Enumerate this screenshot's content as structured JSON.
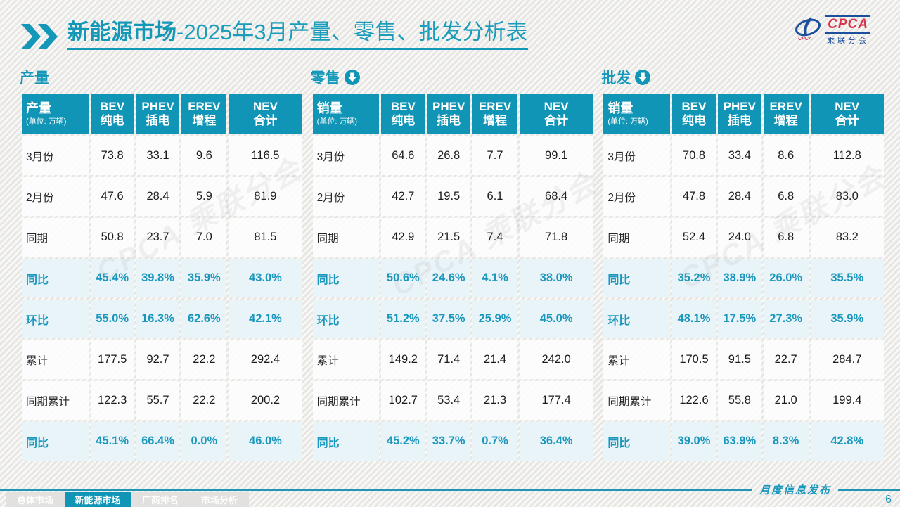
{
  "header": {
    "title_primary": "新能源市场",
    "title_secondary": "-2025年3月产量、零售、批发分析表"
  },
  "logo": {
    "acronym": "CPCA",
    "name": "乘联分会"
  },
  "unit_label": "(单位: 万辆)",
  "watermark_text": "CPCA 乘联分会",
  "columns": [
    {
      "en": "BEV",
      "cn": "纯电"
    },
    {
      "en": "PHEV",
      "cn": "插电"
    },
    {
      "en": "EREV",
      "cn": "增程"
    },
    {
      "en": "NEV",
      "cn": "合计"
    }
  ],
  "tables": [
    {
      "section_label": "产量",
      "first_col": "产量",
      "rows": [
        {
          "label": "3月份",
          "pct": false,
          "values": [
            "73.8",
            "33.1",
            "9.6",
            "116.5"
          ]
        },
        {
          "label": "2月份",
          "pct": false,
          "values": [
            "47.6",
            "28.4",
            "5.9",
            "81.9"
          ]
        },
        {
          "label": "同期",
          "pct": false,
          "values": [
            "50.8",
            "23.7",
            "7.0",
            "81.5"
          ]
        },
        {
          "label": "同比",
          "pct": true,
          "values": [
            "45.4%",
            "39.8%",
            "35.9%",
            "43.0%"
          ]
        },
        {
          "label": "环比",
          "pct": true,
          "values": [
            "55.0%",
            "16.3%",
            "62.6%",
            "42.1%"
          ]
        },
        {
          "label": "累计",
          "pct": false,
          "values": [
            "177.5",
            "92.7",
            "22.2",
            "292.4"
          ]
        },
        {
          "label": "同期累计",
          "pct": false,
          "values": [
            "122.3",
            "55.7",
            "22.2",
            "200.2"
          ]
        },
        {
          "label": "同比",
          "pct": true,
          "values": [
            "45.1%",
            "66.4%",
            "0.0%",
            "46.0%"
          ]
        }
      ]
    },
    {
      "section_label": "零售",
      "first_col": "销量",
      "rows": [
        {
          "label": "3月份",
          "pct": false,
          "values": [
            "64.6",
            "26.8",
            "7.7",
            "99.1"
          ]
        },
        {
          "label": "2月份",
          "pct": false,
          "values": [
            "42.7",
            "19.5",
            "6.1",
            "68.4"
          ]
        },
        {
          "label": "同期",
          "pct": false,
          "values": [
            "42.9",
            "21.5",
            "7.4",
            "71.8"
          ]
        },
        {
          "label": "同比",
          "pct": true,
          "values": [
            "50.6%",
            "24.6%",
            "4.1%",
            "38.0%"
          ]
        },
        {
          "label": "环比",
          "pct": true,
          "values": [
            "51.2%",
            "37.5%",
            "25.9%",
            "45.0%"
          ]
        },
        {
          "label": "累计",
          "pct": false,
          "values": [
            "149.2",
            "71.4",
            "21.4",
            "242.0"
          ]
        },
        {
          "label": "同期累计",
          "pct": false,
          "values": [
            "102.7",
            "53.4",
            "21.3",
            "177.4"
          ]
        },
        {
          "label": "同比",
          "pct": true,
          "values": [
            "45.2%",
            "33.7%",
            "0.7%",
            "36.4%"
          ]
        }
      ]
    },
    {
      "section_label": "批发",
      "first_col": "销量",
      "rows": [
        {
          "label": "3月份",
          "pct": false,
          "values": [
            "70.8",
            "33.4",
            "8.6",
            "112.8"
          ]
        },
        {
          "label": "2月份",
          "pct": false,
          "values": [
            "47.8",
            "28.4",
            "6.8",
            "83.0"
          ]
        },
        {
          "label": "同期",
          "pct": false,
          "values": [
            "52.4",
            "24.0",
            "6.8",
            "83.2"
          ]
        },
        {
          "label": "同比",
          "pct": true,
          "values": [
            "35.2%",
            "38.9%",
            "26.0%",
            "35.5%"
          ]
        },
        {
          "label": "环比",
          "pct": true,
          "values": [
            "48.1%",
            "17.5%",
            "27.3%",
            "35.9%"
          ]
        },
        {
          "label": "累计",
          "pct": false,
          "values": [
            "170.5",
            "91.5",
            "22.7",
            "284.7"
          ]
        },
        {
          "label": "同期累计",
          "pct": false,
          "values": [
            "122.6",
            "55.8",
            "21.0",
            "199.4"
          ]
        },
        {
          "label": "同比",
          "pct": true,
          "values": [
            "39.0%",
            "63.9%",
            "8.3%",
            "42.8%"
          ]
        }
      ]
    }
  ],
  "footer": {
    "tabs": [
      {
        "label": "总体市场",
        "active": false
      },
      {
        "label": "新能源市场",
        "active": true
      },
      {
        "label": "厂商排名",
        "active": false
      },
      {
        "label": "市场分析",
        "active": false
      }
    ],
    "release_label": "月度信息发布",
    "page_number": "6"
  },
  "colors": {
    "accent_teal": "#1095B6",
    "percent_row_bg": "#E9F4F9",
    "percent_text": "#1A97BD",
    "logo_red": "#D8344A",
    "logo_navy": "#1C4F9C"
  }
}
